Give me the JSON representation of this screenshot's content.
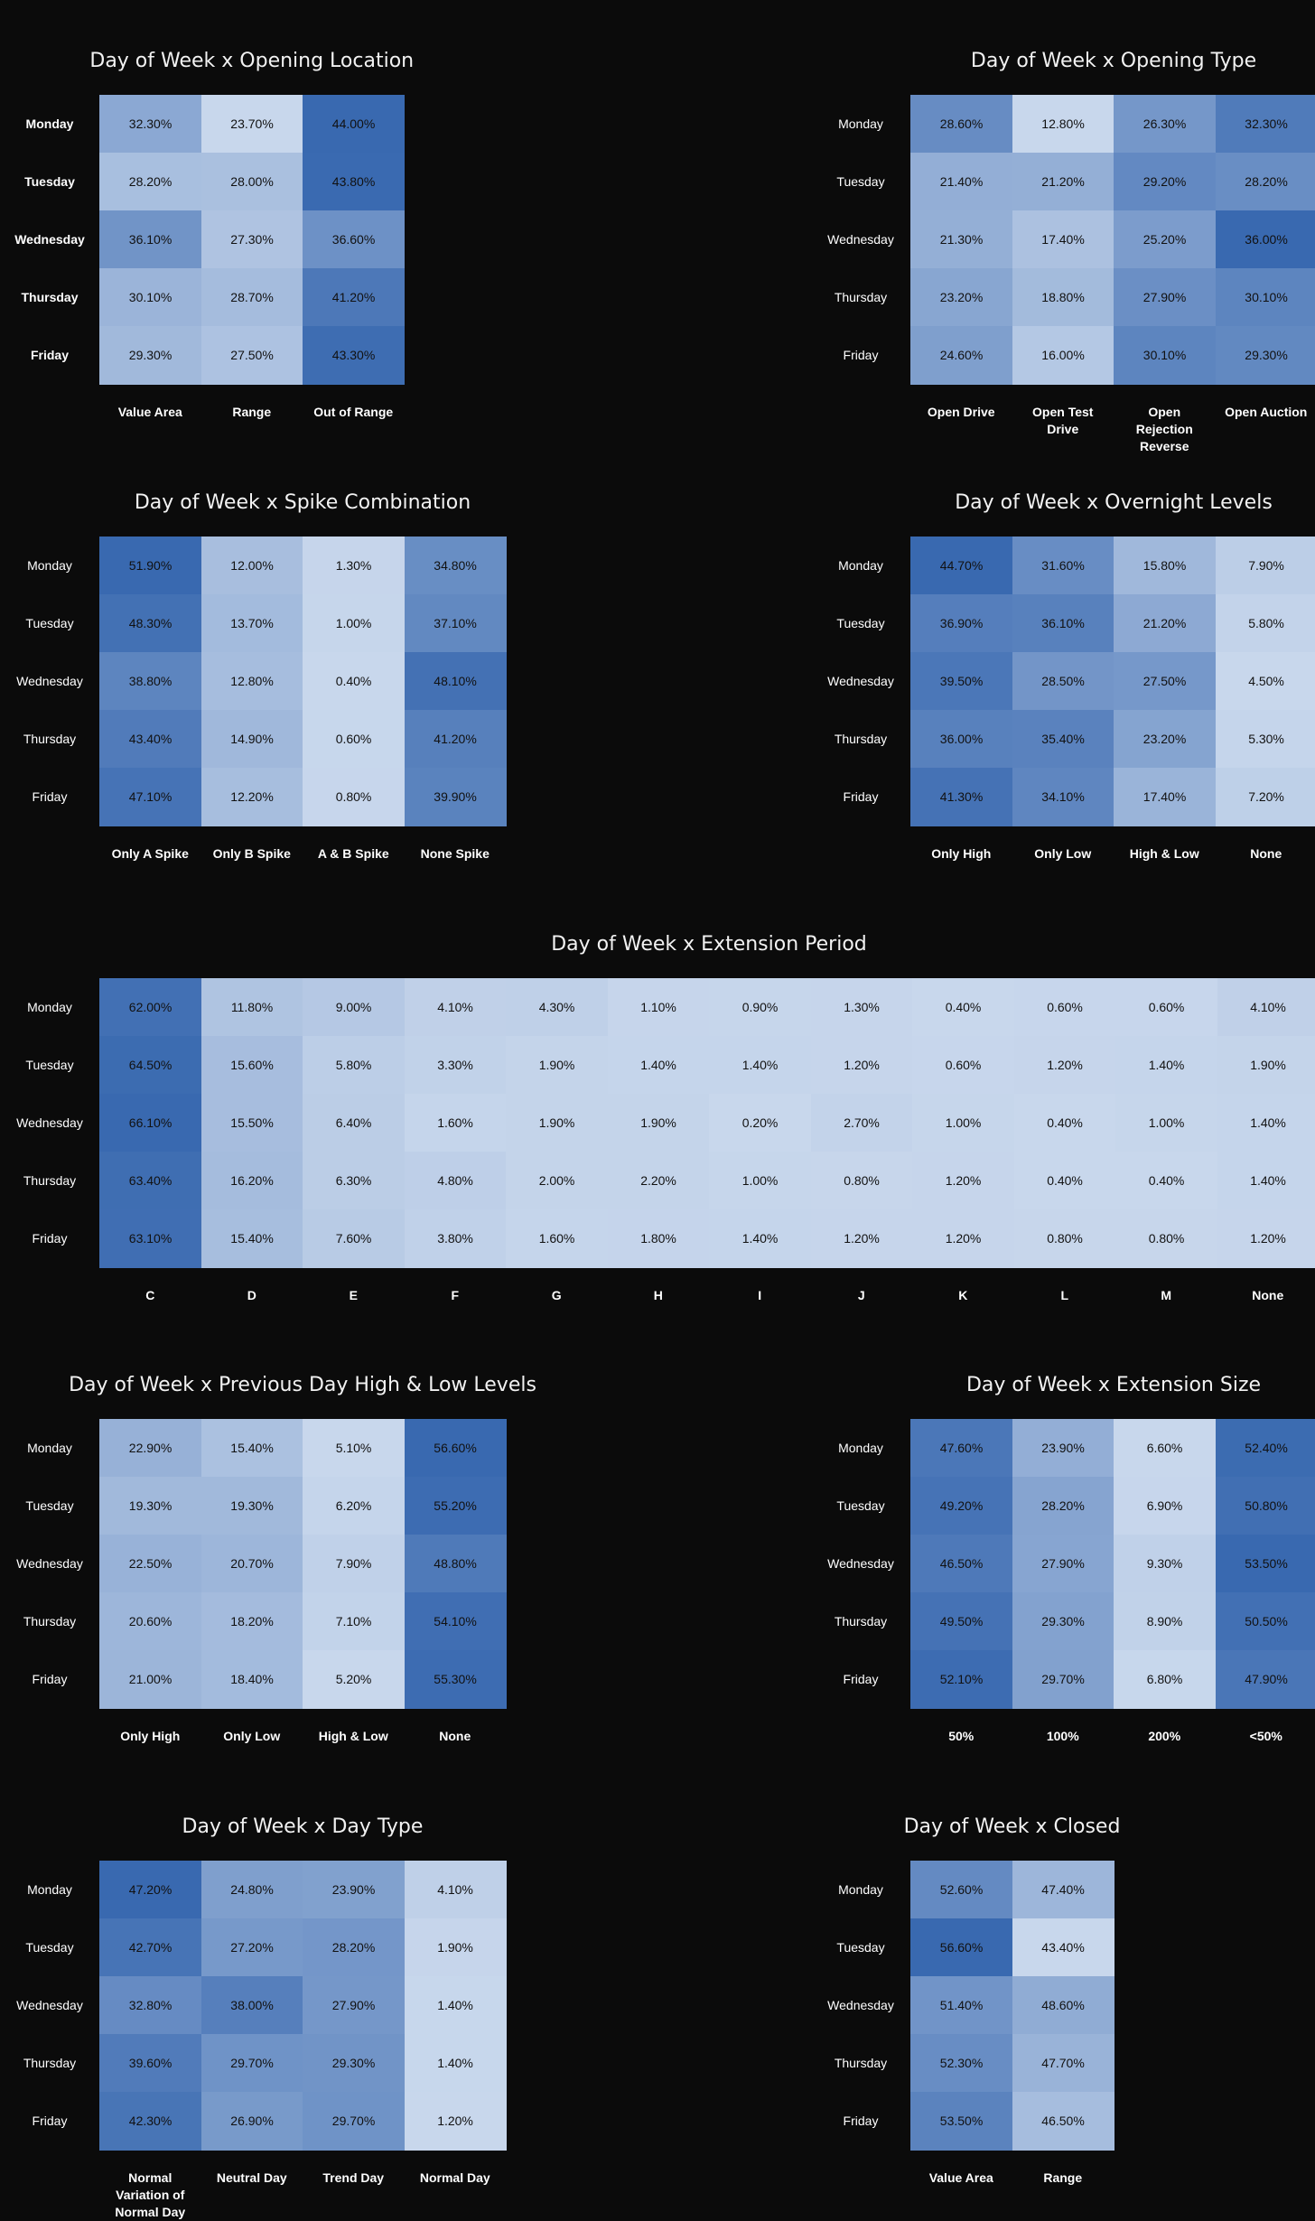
{
  "chart_data": [
    {
      "type": "heatmap",
      "title": "Day of Week x Opening Location",
      "rows": [
        "Monday",
        "Tuesday",
        "Wednesday",
        "Thursday",
        "Friday"
      ],
      "columns": [
        "Value Area",
        "Range",
        "Out of Range"
      ],
      "values": [
        [
          "32.30%",
          "23.70%",
          "44.00%"
        ],
        [
          "28.20%",
          "28.00%",
          "43.80%"
        ],
        [
          "36.10%",
          "27.30%",
          "36.60%"
        ],
        [
          "30.10%",
          "28.70%",
          "41.20%"
        ],
        [
          "29.30%",
          "27.50%",
          "43.30%"
        ]
      ]
    },
    {
      "type": "heatmap",
      "title": "Day of Week x Opening Type",
      "rows": [
        "Monday",
        "Tuesday",
        "Wednesday",
        "Thursday",
        "Friday"
      ],
      "columns": [
        "Open Drive",
        "Open Test Drive",
        "Open Rejection Reverse",
        "Open Auction"
      ],
      "values": [
        [
          "28.60%",
          "12.80%",
          "26.30%",
          "32.30%"
        ],
        [
          "21.40%",
          "21.20%",
          "29.20%",
          "28.20%"
        ],
        [
          "21.30%",
          "17.40%",
          "25.20%",
          "36.00%"
        ],
        [
          "23.20%",
          "18.80%",
          "27.90%",
          "30.10%"
        ],
        [
          "24.60%",
          "16.00%",
          "30.10%",
          "29.30%"
        ]
      ]
    },
    {
      "type": "heatmap",
      "title": "Day of Week x Spike Combination",
      "rows": [
        "Monday",
        "Tuesday",
        "Wednesday",
        "Thursday",
        "Friday"
      ],
      "columns": [
        "Only A Spike",
        "Only B Spike",
        "A & B Spike",
        "None Spike"
      ],
      "values": [
        [
          "51.90%",
          "12.00%",
          "1.30%",
          "34.80%"
        ],
        [
          "48.30%",
          "13.70%",
          "1.00%",
          "37.10%"
        ],
        [
          "38.80%",
          "12.80%",
          "0.40%",
          "48.10%"
        ],
        [
          "43.40%",
          "14.90%",
          "0.60%",
          "41.20%"
        ],
        [
          "47.10%",
          "12.20%",
          "0.80%",
          "39.90%"
        ]
      ]
    },
    {
      "type": "heatmap",
      "title": "Day of Week x Overnight Levels",
      "rows": [
        "Monday",
        "Tuesday",
        "Wednesday",
        "Thursday",
        "Friday"
      ],
      "columns": [
        "Only High",
        "Only Low",
        "High & Low",
        "None"
      ],
      "values": [
        [
          "44.70%",
          "31.60%",
          "15.80%",
          "7.90%"
        ],
        [
          "36.90%",
          "36.10%",
          "21.20%",
          "5.80%"
        ],
        [
          "39.50%",
          "28.50%",
          "27.50%",
          "4.50%"
        ],
        [
          "36.00%",
          "35.40%",
          "23.20%",
          "5.30%"
        ],
        [
          "41.30%",
          "34.10%",
          "17.40%",
          "7.20%"
        ]
      ]
    },
    {
      "type": "heatmap",
      "title": "Day of Week x Extension Period",
      "rows": [
        "Monday",
        "Tuesday",
        "Wednesday",
        "Thursday",
        "Friday"
      ],
      "columns": [
        "C",
        "D",
        "E",
        "F",
        "G",
        "H",
        "I",
        "J",
        "K",
        "L",
        "M",
        "None"
      ],
      "values": [
        [
          "62.00%",
          "11.80%",
          "9.00%",
          "4.10%",
          "4.30%",
          "1.10%",
          "0.90%",
          "1.30%",
          "0.40%",
          "0.60%",
          "0.60%",
          "4.10%"
        ],
        [
          "64.50%",
          "15.60%",
          "5.80%",
          "3.30%",
          "1.90%",
          "1.40%",
          "1.40%",
          "1.20%",
          "0.60%",
          "1.20%",
          "1.40%",
          "1.90%"
        ],
        [
          "66.10%",
          "15.50%",
          "6.40%",
          "1.60%",
          "1.90%",
          "1.90%",
          "0.20%",
          "2.70%",
          "1.00%",
          "0.40%",
          "1.00%",
          "1.40%"
        ],
        [
          "63.40%",
          "16.20%",
          "6.30%",
          "4.80%",
          "2.00%",
          "2.20%",
          "1.00%",
          "0.80%",
          "1.20%",
          "0.40%",
          "0.40%",
          "1.40%"
        ],
        [
          "63.10%",
          "15.40%",
          "7.60%",
          "3.80%",
          "1.60%",
          "1.80%",
          "1.40%",
          "1.20%",
          "1.20%",
          "0.80%",
          "0.80%",
          "1.20%"
        ]
      ]
    },
    {
      "type": "heatmap",
      "title": "Day of Week x Previous Day High & Low Levels",
      "rows": [
        "Monday",
        "Tuesday",
        "Wednesday",
        "Thursday",
        "Friday"
      ],
      "columns": [
        "Only High",
        "Only Low",
        "High & Low",
        "None"
      ],
      "values": [
        [
          "22.90%",
          "15.40%",
          "5.10%",
          "56.60%"
        ],
        [
          "19.30%",
          "19.30%",
          "6.20%",
          "55.20%"
        ],
        [
          "22.50%",
          "20.70%",
          "7.90%",
          "48.80%"
        ],
        [
          "20.60%",
          "18.20%",
          "7.10%",
          "54.10%"
        ],
        [
          "21.00%",
          "18.40%",
          "5.20%",
          "55.30%"
        ]
      ]
    },
    {
      "type": "heatmap",
      "title": "Day of Week x Extension Size",
      "rows": [
        "Monday",
        "Tuesday",
        "Wednesday",
        "Thursday",
        "Friday"
      ],
      "columns": [
        "50%",
        "100%",
        "200%",
        "<50%"
      ],
      "values": [
        [
          "47.60%",
          "23.90%",
          "6.60%",
          "52.40%"
        ],
        [
          "49.20%",
          "28.20%",
          "6.90%",
          "50.80%"
        ],
        [
          "46.50%",
          "27.90%",
          "9.30%",
          "53.50%"
        ],
        [
          "49.50%",
          "29.30%",
          "8.90%",
          "50.50%"
        ],
        [
          "52.10%",
          "29.70%",
          "6.80%",
          "47.90%"
        ]
      ]
    },
    {
      "type": "heatmap",
      "title": "Day of Week x Day Type",
      "rows": [
        "Monday",
        "Tuesday",
        "Wednesday",
        "Thursday",
        "Friday"
      ],
      "columns": [
        "Normal Variation of Normal Day",
        "Neutral Day",
        "Trend Day",
        "Normal Day"
      ],
      "values": [
        [
          "47.20%",
          "24.80%",
          "23.90%",
          "4.10%"
        ],
        [
          "42.70%",
          "27.20%",
          "28.20%",
          "1.90%"
        ],
        [
          "32.80%",
          "38.00%",
          "27.90%",
          "1.40%"
        ],
        [
          "39.60%",
          "29.70%",
          "29.30%",
          "1.40%"
        ],
        [
          "42.30%",
          "26.90%",
          "29.70%",
          "1.20%"
        ]
      ]
    },
    {
      "type": "heatmap",
      "title": "Day of Week x Closed",
      "rows": [
        "Monday",
        "Tuesday",
        "Wednesday",
        "Thursday",
        "Friday"
      ],
      "columns": [
        "Value Area",
        "Range"
      ],
      "values": [
        [
          "52.60%",
          "47.40%"
        ],
        [
          "56.60%",
          "43.40%"
        ],
        [
          "51.40%",
          "48.60%"
        ],
        [
          "52.30%",
          "47.70%"
        ],
        [
          "53.50%",
          "46.50%"
        ]
      ]
    }
  ]
}
